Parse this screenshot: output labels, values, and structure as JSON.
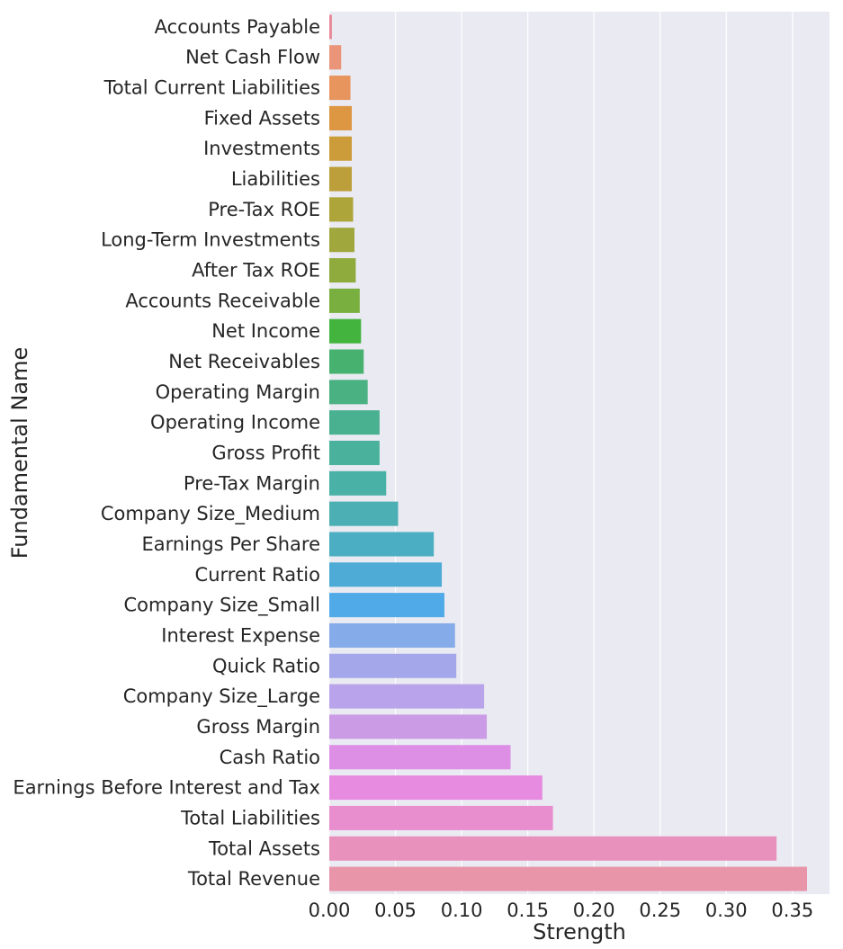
{
  "chart_data": {
    "type": "bar",
    "orientation": "horizontal",
    "title": "",
    "xlabel": "Strength",
    "ylabel": "Fundamental Name",
    "xlim": [
      0,
      0.378
    ],
    "xticks": [
      0.0,
      0.05,
      0.1,
      0.15,
      0.2,
      0.25,
      0.3,
      0.35
    ],
    "xtick_labels": [
      "0.00",
      "0.05",
      "0.10",
      "0.15",
      "0.20",
      "0.25",
      "0.30",
      "0.35"
    ],
    "grid": true,
    "background": "#EAEAF2",
    "grid_color": "#FFFFFF",
    "categories": [
      "Accounts Payable",
      "Net Cash Flow",
      "Total Current Liabilities",
      "Fixed Assets",
      "Investments",
      "Liabilities",
      "Pre-Tax ROE",
      "Long-Term Investments",
      "After Tax ROE",
      "Accounts Receivable",
      "Net Income",
      "Net Receivables",
      "Operating Margin",
      "Operating Income",
      "Gross Profit",
      "Pre-Tax Margin",
      "Company Size_Medium",
      "Earnings Per Share",
      "Current Ratio",
      "Company Size_Small",
      "Interest Expense",
      "Quick Ratio",
      "Company Size_Large",
      "Gross Margin",
      "Cash Ratio",
      "Earnings Before Interest and Tax",
      "Total Liabilities",
      "Total Assets",
      "Total Revenue"
    ],
    "values": [
      0.002,
      0.009,
      0.016,
      0.017,
      0.017,
      0.017,
      0.018,
      0.019,
      0.02,
      0.023,
      0.024,
      0.026,
      0.029,
      0.038,
      0.038,
      0.043,
      0.052,
      0.079,
      0.085,
      0.087,
      0.095,
      0.096,
      0.117,
      0.119,
      0.137,
      0.161,
      0.169,
      0.338,
      0.361
    ],
    "colors": [
      "#E98A98",
      "#EA9479",
      "#E7955D",
      "#DD9743",
      "#CC9C3B",
      "#BC9F3A",
      "#ADA43A",
      "#A0A73C",
      "#8FAB3D",
      "#79AF3F",
      "#43B53F",
      "#47B270",
      "#49B182",
      "#49B190",
      "#4AB29C",
      "#4AB1A7",
      "#4BAFB3",
      "#4CAEC2",
      "#4DABD6",
      "#51AAE8",
      "#85ABE8",
      "#A4A8EA",
      "#B9A3EA",
      "#CB9BE6",
      "#DD8FE6",
      "#E68BDF",
      "#E88ECF",
      "#E991BD",
      "#E895AA"
    ]
  }
}
